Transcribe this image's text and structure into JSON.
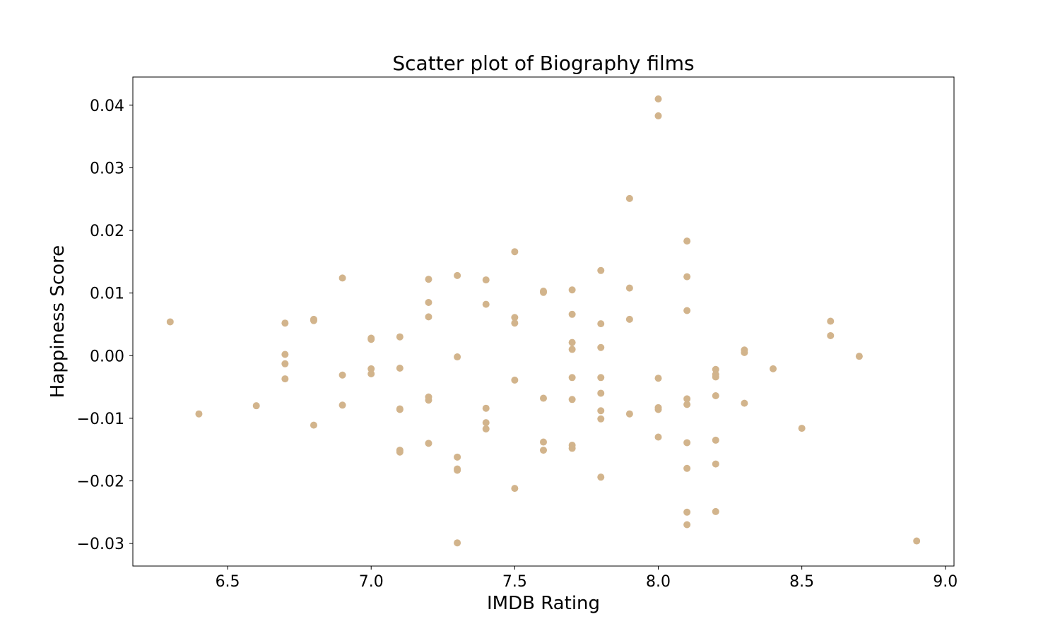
{
  "chart_data": {
    "type": "scatter",
    "title": "Scatter plot of Biography films",
    "xlabel": "IMDB Rating",
    "ylabel": "Happiness Score",
    "xlim": [
      6.17,
      9.03
    ],
    "ylim": [
      -0.0336,
      0.0445
    ],
    "x_ticks": [
      6.5,
      7.0,
      7.5,
      8.0,
      8.5,
      9.0
    ],
    "x_tick_labels": [
      "6.5",
      "7.0",
      "7.5",
      "8.0",
      "8.5",
      "9.0"
    ],
    "y_ticks": [
      -0.03,
      -0.02,
      -0.01,
      0.0,
      0.01,
      0.02,
      0.03,
      0.04
    ],
    "y_tick_labels": [
      "−0.03",
      "−0.02",
      "−0.01",
      "0.00",
      "0.01",
      "0.02",
      "0.03",
      "0.04"
    ],
    "grid": false,
    "legend": "none",
    "marker_color": "#d2b48c",
    "series": [
      {
        "points": [
          [
            6.3,
            0.0054
          ],
          [
            6.4,
            -0.0093
          ],
          [
            6.6,
            -0.008
          ],
          [
            6.7,
            0.0052
          ],
          [
            6.7,
            0.0002
          ],
          [
            6.7,
            -0.0013
          ],
          [
            6.7,
            -0.0037
          ],
          [
            6.8,
            0.0058
          ],
          [
            6.8,
            0.0056
          ],
          [
            6.8,
            -0.0111
          ],
          [
            6.9,
            0.0124
          ],
          [
            6.9,
            -0.0031
          ],
          [
            6.9,
            -0.0079
          ],
          [
            7.0,
            0.0028
          ],
          [
            7.0,
            0.0026
          ],
          [
            7.0,
            -0.0021
          ],
          [
            7.0,
            -0.0029
          ],
          [
            7.1,
            0.003
          ],
          [
            7.1,
            -0.002
          ],
          [
            7.1,
            -0.0085
          ],
          [
            7.1,
            -0.0086
          ],
          [
            7.1,
            -0.0151
          ],
          [
            7.1,
            -0.0154
          ],
          [
            7.2,
            0.0122
          ],
          [
            7.2,
            0.0085
          ],
          [
            7.2,
            0.0062
          ],
          [
            7.2,
            -0.0066
          ],
          [
            7.2,
            -0.0071
          ],
          [
            7.2,
            -0.014
          ],
          [
            7.3,
            0.0128
          ],
          [
            7.3,
            -0.0002
          ],
          [
            7.3,
            -0.0162
          ],
          [
            7.3,
            -0.0181
          ],
          [
            7.3,
            -0.0183
          ],
          [
            7.3,
            -0.0299
          ],
          [
            7.4,
            0.0121
          ],
          [
            7.4,
            0.0082
          ],
          [
            7.4,
            -0.0084
          ],
          [
            7.4,
            -0.0107
          ],
          [
            7.4,
            -0.0117
          ],
          [
            7.5,
            0.0166
          ],
          [
            7.5,
            0.0061
          ],
          [
            7.5,
            0.0052
          ],
          [
            7.5,
            -0.0039
          ],
          [
            7.5,
            -0.0212
          ],
          [
            7.6,
            0.0103
          ],
          [
            7.6,
            0.0101
          ],
          [
            7.6,
            -0.0068
          ],
          [
            7.6,
            -0.0138
          ],
          [
            7.6,
            -0.0151
          ],
          [
            7.7,
            0.0105
          ],
          [
            7.7,
            0.0066
          ],
          [
            7.7,
            0.0021
          ],
          [
            7.7,
            0.001
          ],
          [
            7.7,
            -0.0035
          ],
          [
            7.7,
            -0.007
          ],
          [
            7.7,
            -0.0143
          ],
          [
            7.7,
            -0.0148
          ],
          [
            7.8,
            0.0136
          ],
          [
            7.8,
            0.0051
          ],
          [
            7.8,
            0.0013
          ],
          [
            7.8,
            -0.0035
          ],
          [
            7.8,
            -0.006
          ],
          [
            7.8,
            -0.0088
          ],
          [
            7.8,
            -0.0101
          ],
          [
            7.8,
            -0.0194
          ],
          [
            7.9,
            0.0251
          ],
          [
            7.9,
            0.0108
          ],
          [
            7.9,
            0.0058
          ],
          [
            7.9,
            -0.0093
          ],
          [
            8.0,
            0.041
          ],
          [
            8.0,
            0.0383
          ],
          [
            8.0,
            -0.0036
          ],
          [
            8.0,
            -0.0083
          ],
          [
            8.0,
            -0.0086
          ],
          [
            8.0,
            -0.013
          ],
          [
            8.1,
            0.0183
          ],
          [
            8.1,
            0.0126
          ],
          [
            8.1,
            0.0072
          ],
          [
            8.1,
            -0.0069
          ],
          [
            8.1,
            -0.0078
          ],
          [
            8.1,
            -0.0139
          ],
          [
            8.1,
            -0.018
          ],
          [
            8.1,
            -0.025
          ],
          [
            8.1,
            -0.027
          ],
          [
            8.2,
            -0.0022
          ],
          [
            8.2,
            -0.003
          ],
          [
            8.2,
            -0.0034
          ],
          [
            8.2,
            -0.0064
          ],
          [
            8.2,
            -0.0135
          ],
          [
            8.2,
            -0.0173
          ],
          [
            8.2,
            -0.0249
          ],
          [
            8.3,
            0.0009
          ],
          [
            8.3,
            0.0005
          ],
          [
            8.3,
            -0.0076
          ],
          [
            8.4,
            -0.0021
          ],
          [
            8.5,
            -0.0116
          ],
          [
            8.6,
            0.0055
          ],
          [
            8.6,
            0.0032
          ],
          [
            8.7,
            -0.0001
          ],
          [
            8.9,
            -0.0296
          ]
        ]
      }
    ]
  }
}
